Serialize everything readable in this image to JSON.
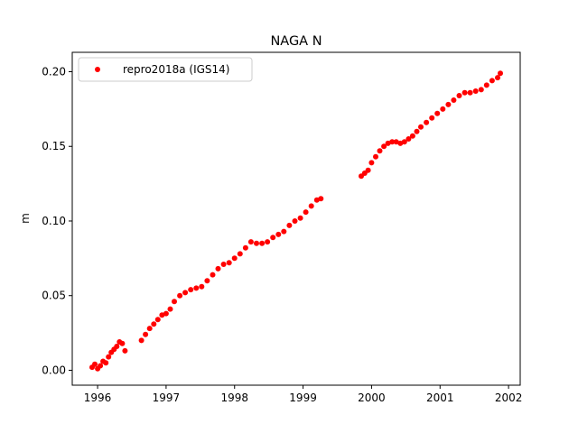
{
  "chart_data": {
    "type": "scatter",
    "title": "NAGA N",
    "xlabel": "",
    "ylabel": "m",
    "xlim": [
      1995.63,
      2002.17
    ],
    "ylim": [
      -0.01,
      0.213
    ],
    "grid": false,
    "legend_position": "top-left",
    "x_ticks": [
      1996,
      1997,
      1998,
      1999,
      2000,
      2001,
      2002
    ],
    "x_tick_labels": [
      "1996",
      "1997",
      "1998",
      "1999",
      "2000",
      "2001",
      "2002"
    ],
    "y_ticks": [
      0.0,
      0.05,
      0.1,
      0.15,
      0.2
    ],
    "y_tick_labels": [
      "0.00",
      "0.05",
      "0.10",
      "0.15",
      "0.20"
    ],
    "series": [
      {
        "name": "repro2018a (IGS14)",
        "color": "#ff0000",
        "marker": "circle",
        "x": [
          1995.92,
          1995.96,
          1996.0,
          1996.04,
          1996.08,
          1996.12,
          1996.16,
          1996.2,
          1996.24,
          1996.28,
          1996.32,
          1996.36,
          1996.4,
          1996.64,
          1996.7,
          1996.76,
          1996.82,
          1996.88,
          1996.94,
          1997.0,
          1997.06,
          1997.12,
          1997.2,
          1997.28,
          1997.36,
          1997.44,
          1997.52,
          1997.6,
          1997.68,
          1997.76,
          1997.84,
          1997.92,
          1998.0,
          1998.08,
          1998.16,
          1998.24,
          1998.32,
          1998.4,
          1998.48,
          1998.56,
          1998.64,
          1998.72,
          1998.8,
          1998.88,
          1998.96,
          1999.04,
          1999.12,
          1999.2,
          1999.26,
          1999.85,
          1999.9,
          1999.95,
          2000.0,
          2000.06,
          2000.12,
          2000.18,
          2000.24,
          2000.3,
          2000.36,
          2000.42,
          2000.48,
          2000.54,
          2000.6,
          2000.66,
          2000.72,
          2000.8,
          2000.88,
          2000.96,
          2001.04,
          2001.12,
          2001.2,
          2001.28,
          2001.36,
          2001.44,
          2001.52,
          2001.6,
          2001.68,
          2001.76,
          2001.84,
          2001.88
        ],
        "y": [
          0.002,
          0.004,
          0.001,
          0.003,
          0.006,
          0.005,
          0.009,
          0.012,
          0.014,
          0.016,
          0.019,
          0.018,
          0.013,
          0.02,
          0.024,
          0.028,
          0.031,
          0.034,
          0.037,
          0.038,
          0.041,
          0.046,
          0.05,
          0.052,
          0.054,
          0.055,
          0.056,
          0.06,
          0.064,
          0.068,
          0.071,
          0.072,
          0.075,
          0.078,
          0.082,
          0.086,
          0.085,
          0.085,
          0.086,
          0.089,
          0.091,
          0.093,
          0.097,
          0.1,
          0.102,
          0.106,
          0.11,
          0.114,
          0.115,
          0.13,
          0.132,
          0.134,
          0.139,
          0.143,
          0.147,
          0.15,
          0.152,
          0.153,
          0.153,
          0.152,
          0.153,
          0.155,
          0.157,
          0.16,
          0.163,
          0.166,
          0.169,
          0.172,
          0.175,
          0.178,
          0.181,
          0.184,
          0.186,
          0.186,
          0.187,
          0.188,
          0.191,
          0.194,
          0.196,
          0.199
        ]
      }
    ]
  }
}
